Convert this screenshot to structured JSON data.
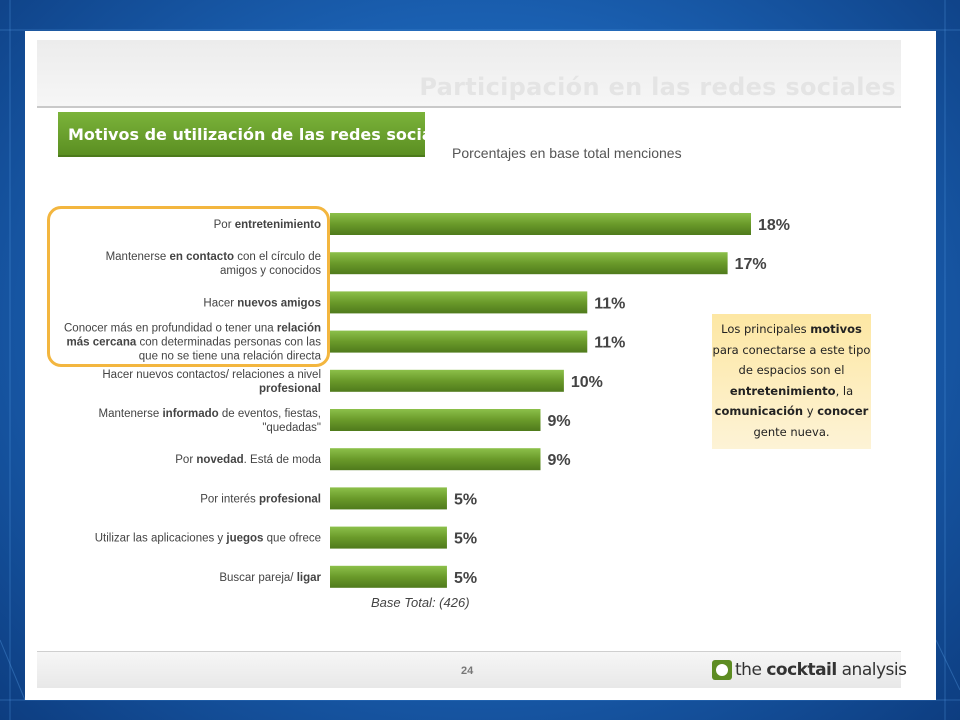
{
  "slide": {
    "watermark_title": "Participación en las redes sociales",
    "banner_title": "Motivos de utilización de las redes sociales",
    "subtitle": "Porcentajes en base total menciones",
    "base_total": "Base Total: (426)",
    "page_number": "24",
    "logo": {
      "part1": "the ",
      "part2": "cocktail",
      "part3": " analysis"
    }
  },
  "callout": {
    "segments": [
      {
        "t": "Los principales ",
        "b": false
      },
      {
        "t": "motivos",
        "b": true
      },
      {
        "t": " para conectarse a este tipo de espacios son el ",
        "b": false
      },
      {
        "t": "entretenimiento",
        "b": true
      },
      {
        "t": ", la ",
        "b": false
      },
      {
        "t": "comunicación",
        "b": true
      },
      {
        "t": " y ",
        "b": false
      },
      {
        "t": "conocer",
        "b": true
      },
      {
        "t": " gente nueva.",
        "b": false
      }
    ]
  },
  "colors": {
    "bar": "#6a9a2a",
    "bar_light": "#8cc04a",
    "highlight": "#f3b63f"
  },
  "chart_data": {
    "type": "bar",
    "orientation": "horizontal",
    "unit": "%",
    "xlim": [
      0,
      18
    ],
    "categories": [
      [
        [
          "Por ",
          false
        ],
        [
          "entretenimiento",
          true
        ]
      ],
      [
        [
          "Mantenerse ",
          false
        ],
        [
          "en contacto",
          true
        ],
        [
          " con el círculo de amigos y conocidos",
          false
        ]
      ],
      [
        [
          "Hacer ",
          false
        ],
        [
          "nuevos amigos",
          true
        ]
      ],
      [
        [
          "Conocer más en profundidad o tener una ",
          false
        ],
        [
          "relación más cercana",
          true
        ],
        [
          " con determinadas personas con las que no se tiene una relación directa",
          false
        ]
      ],
      [
        [
          "Hacer nuevos contactos/ relaciones a nivel ",
          false
        ],
        [
          "profesional",
          true
        ]
      ],
      [
        [
          "Mantenerse ",
          false
        ],
        [
          "informado",
          true
        ],
        [
          " de eventos, fiestas, \"quedadas\"",
          false
        ]
      ],
      [
        [
          "Por ",
          false
        ],
        [
          "novedad",
          true
        ],
        [
          ". Está de moda",
          false
        ]
      ],
      [
        [
          "Por interés ",
          false
        ],
        [
          "profesional",
          true
        ]
      ],
      [
        [
          "Utilizar las aplicaciones y ",
          false
        ],
        [
          "juegos",
          true
        ],
        [
          " que ofrece",
          false
        ]
      ],
      [
        [
          "Buscar pareja/ ",
          false
        ],
        [
          "ligar",
          true
        ]
      ]
    ],
    "category_lines": [
      [
        [
          [
            "Por ",
            false
          ],
          [
            "entretenimiento",
            true
          ]
        ]
      ],
      [
        [
          [
            "Mantenerse ",
            false
          ],
          [
            "en contacto",
            true
          ],
          [
            " con el círculo de",
            false
          ]
        ],
        [
          [
            "amigos y conocidos",
            false
          ]
        ]
      ],
      [
        [
          [
            "Hacer ",
            false
          ],
          [
            "nuevos amigos",
            true
          ]
        ]
      ],
      [
        [
          [
            "Conocer más en profundidad o tener una ",
            false
          ],
          [
            "relación",
            true
          ]
        ],
        [
          [
            "más cercana",
            true
          ],
          [
            " con determinadas personas con las",
            false
          ]
        ],
        [
          [
            "que no se tiene una relación directa",
            false
          ]
        ]
      ],
      [
        [
          [
            "Hacer nuevos contactos/ relaciones a nivel",
            false
          ]
        ],
        [
          [
            "profesional",
            true
          ]
        ]
      ],
      [
        [
          [
            "Mantenerse ",
            false
          ],
          [
            "informado",
            true
          ],
          [
            " de eventos, fiestas,",
            false
          ]
        ],
        [
          [
            "\"quedadas\"",
            false
          ]
        ]
      ],
      [
        [
          [
            "Por ",
            false
          ],
          [
            "novedad",
            true
          ],
          [
            ". Está de moda",
            false
          ]
        ]
      ],
      [
        [
          [
            "Por interés ",
            false
          ],
          [
            "profesional",
            true
          ]
        ]
      ],
      [
        [
          [
            "Utilizar las aplicaciones y ",
            false
          ],
          [
            "juegos",
            true
          ],
          [
            " que ofrece",
            false
          ]
        ]
      ],
      [
        [
          [
            "Buscar pareja/ ",
            false
          ],
          [
            "ligar",
            true
          ]
        ]
      ]
    ],
    "values": [
      18,
      17,
      11,
      11,
      10,
      9,
      9,
      5,
      5,
      5
    ],
    "value_labels": [
      "18%",
      "17%",
      "11%",
      "11%",
      "10%",
      "9%",
      "9%",
      "5%",
      "5%",
      "5%"
    ]
  }
}
